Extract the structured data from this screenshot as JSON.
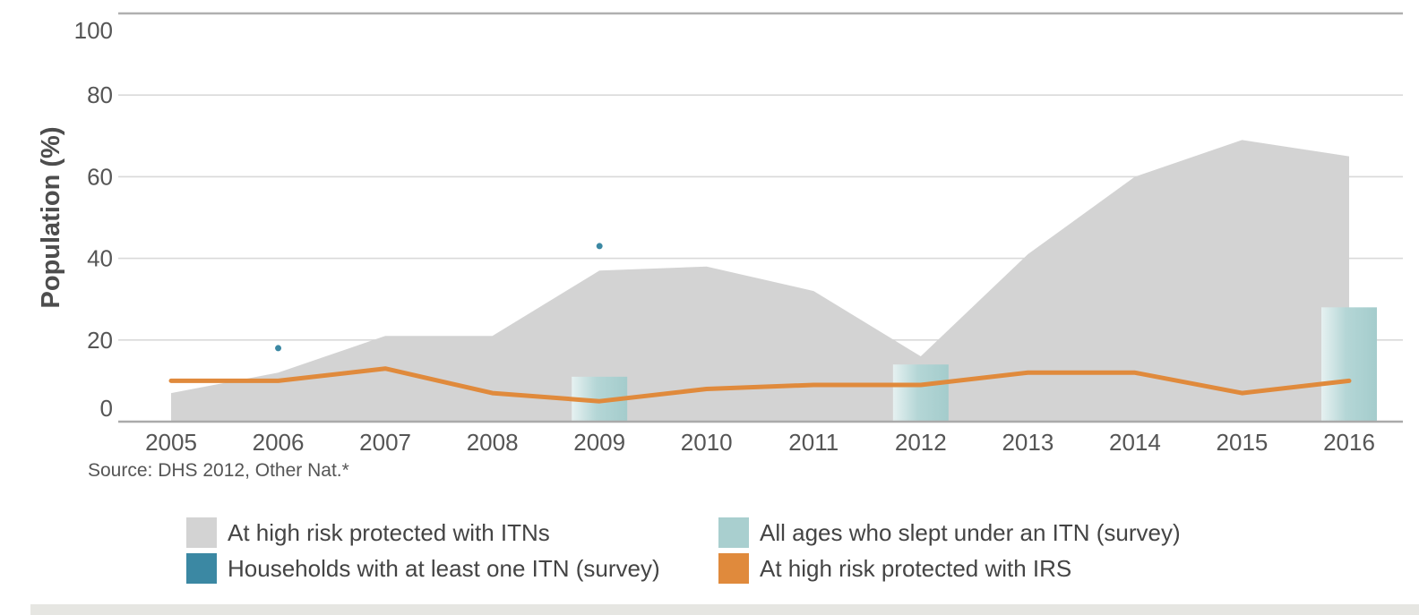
{
  "chart_data": {
    "type": "area",
    "ylabel": "Population (%)",
    "ylim": [
      0,
      100
    ],
    "yticks": [
      0,
      20,
      40,
      60,
      80,
      100
    ],
    "x": [
      "2005",
      "2006",
      "2007",
      "2008",
      "2009",
      "2010",
      "2011",
      "2012",
      "2013",
      "2014",
      "2015",
      "2016"
    ],
    "grid": true,
    "legend_position": "bottom",
    "series": [
      {
        "name": "At high risk protected with ITNs",
        "type": "area",
        "color": "#d3d3d3",
        "values": [
          7,
          12,
          21,
          21,
          37,
          38,
          32,
          16,
          41,
          60,
          69,
          65
        ]
      },
      {
        "name": "All ages who slept under an ITN (survey)",
        "type": "bar",
        "color": "#a9cfcf",
        "points": [
          {
            "x": "2009",
            "y": 11
          },
          {
            "x": "2012",
            "y": 14
          },
          {
            "x": "2016",
            "y": 28
          }
        ]
      },
      {
        "name": "Households with at least one ITN (survey)",
        "type": "scatter",
        "color": "#3b88a3",
        "points": [
          {
            "x": "2006",
            "y": 18
          },
          {
            "x": "2009",
            "y": 43
          }
        ]
      },
      {
        "name": "At high risk protected with IRS",
        "type": "line",
        "color": "#e08a3c",
        "values": [
          10,
          10,
          13,
          7,
          5,
          8,
          9,
          9,
          12,
          12,
          7,
          10
        ]
      }
    ]
  },
  "source": "Source: DHS 2012, Other Nat.*",
  "legend": [
    {
      "label": "At high risk protected with ITNs",
      "color": "#d3d3d3"
    },
    {
      "label": "All ages who slept under an ITN (survey)",
      "color": "#a9cfcf"
    },
    {
      "label": "Households with at least one ITN (survey)",
      "color": "#3b88a3"
    },
    {
      "label": "At high risk protected with IRS",
      "color": "#e08a3c"
    }
  ]
}
